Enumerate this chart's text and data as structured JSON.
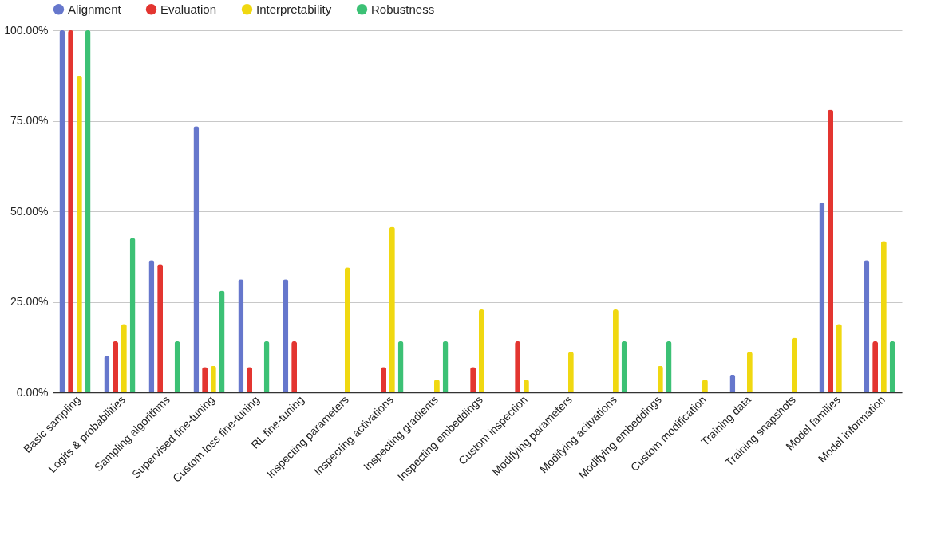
{
  "chart_data": {
    "type": "bar",
    "categories": [
      "Basic sampling",
      "Logits & probabilities",
      "Sampling algorithms",
      "Supervised fine-tuning",
      "Custom loss fine-tuning",
      "RL fine-tuning",
      "Inspecting parameters",
      "Inspecting activations",
      "Inspecting gradients",
      "Inspecting embeddings",
      "Custom inspection",
      "Modifying parameters",
      "Modifying acitvations",
      "Modifying embeddings",
      "Custom modification",
      "Training data",
      "Training snapshots",
      "Model families",
      "Model information"
    ],
    "series": [
      {
        "name": "Alignment",
        "color": "#6677cc",
        "values": [
          100,
          10.1,
          36.5,
          73.5,
          31.2,
          31.2,
          null,
          null,
          null,
          null,
          null,
          null,
          null,
          null,
          null,
          4.9,
          null,
          52.5,
          36.5
        ]
      },
      {
        "name": "Evaluation",
        "color": "#e33530",
        "values": [
          100,
          14.1,
          35.4,
          7.0,
          7.0,
          14.1,
          null,
          7.0,
          null,
          7.0,
          14.1,
          null,
          null,
          null,
          null,
          null,
          null,
          78.1,
          14.1
        ]
      },
      {
        "name": "Interpretability",
        "color": "#f0d811",
        "values": [
          87.5,
          18.9,
          null,
          7.3,
          null,
          null,
          34.5,
          45.7,
          3.5,
          22.9,
          3.5,
          11.2,
          22.9,
          7.3,
          3.5,
          11.2,
          15.1,
          18.9,
          41.8
        ]
      },
      {
        "name": "Robustness",
        "color": "#3cc175",
        "values": [
          100,
          42.6,
          14.1,
          28.1,
          14.1,
          null,
          null,
          14.1,
          14.1,
          null,
          null,
          null,
          14.1,
          14.1,
          null,
          null,
          null,
          null,
          14.1
        ]
      }
    ],
    "ylim": [
      0,
      100
    ],
    "yticks": [
      {
        "value": 0,
        "label": "0.00%"
      },
      {
        "value": 25,
        "label": "25.00%"
      },
      {
        "value": 50,
        "label": "50.00%"
      },
      {
        "value": 75,
        "label": "75.00%"
      },
      {
        "value": 100,
        "label": "100.00%"
      }
    ],
    "grid": "y",
    "legend": "top"
  }
}
